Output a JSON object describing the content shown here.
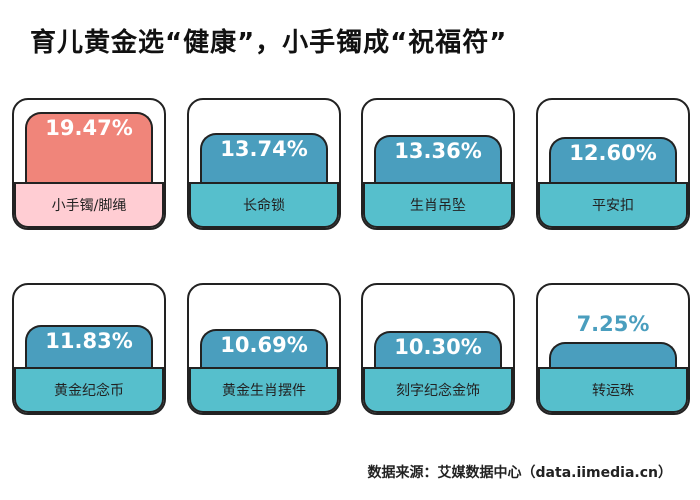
{
  "title": "育儿黄金选“健康”，小手镯成“祝福符”",
  "source": "数据来源：艾媒数据中心（data.iimedia.cn）",
  "colors": {
    "highlight_bar": "#F0857A",
    "highlight_label": "#FFCDD3",
    "bar": "#4A9EBE",
    "label": "#56BFCC",
    "outline": "#222222"
  },
  "chart_data": {
    "type": "bar",
    "title": "育儿黄金选“健康”，小手镯成“祝福符”",
    "categories": [
      "小手镯/脚绳",
      "长命锁",
      "生肖吊坠",
      "平安扣",
      "黄金纪念币",
      "黄金生肖摆件",
      "刻字纪念金饰",
      "转运珠"
    ],
    "values": [
      19.47,
      13.74,
      13.36,
      12.6,
      11.83,
      10.69,
      10.3,
      7.25
    ],
    "value_labels": [
      "19.47%",
      "13.74%",
      "13.36%",
      "12.60%",
      "11.83%",
      "10.69%",
      "10.30%",
      "7.25%"
    ],
    "unit": "%",
    "highlight_index": 0
  }
}
